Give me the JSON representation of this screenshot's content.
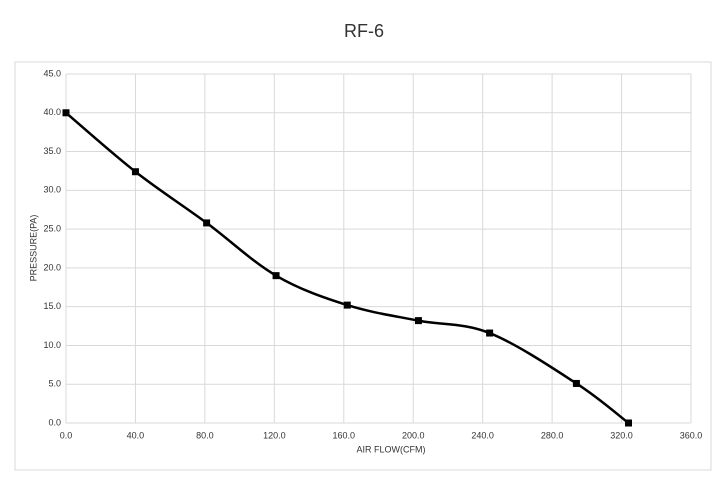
{
  "chart_data": {
    "type": "line",
    "title": "RF-6",
    "x_label": "AIR FLOW(CFM)",
    "y_label": "PRESSURE(PA)",
    "x": [
      0,
      40,
      81,
      121,
      162,
      203,
      244,
      294,
      324
    ],
    "series": [
      {
        "color": "#000000",
        "values": [
          40,
          32.4,
          25.8,
          19,
          15.2,
          13.2,
          11.6,
          5.1,
          0
        ]
      }
    ],
    "xlim": [
      0,
      360
    ],
    "xticks": [
      {
        "value": 0,
        "label": "0.0"
      },
      {
        "value": 40,
        "label": "40.0"
      },
      {
        "value": 80,
        "label": "80.0"
      },
      {
        "value": 120,
        "label": "120.0"
      },
      {
        "value": 160,
        "label": "160.0"
      },
      {
        "value": 200,
        "label": "200.0"
      },
      {
        "value": 240,
        "label": "240.0"
      },
      {
        "value": 280,
        "label": "280.0"
      },
      {
        "value": 320,
        "label": "320.0"
      },
      {
        "value": 360,
        "label": "360.0"
      }
    ],
    "ylim": [
      0,
      45
    ],
    "yticks": [
      {
        "value": 0,
        "label": "0.0"
      },
      {
        "value": 5,
        "label": "5.0"
      },
      {
        "value": 10,
        "label": "10.0"
      },
      {
        "value": 15,
        "label": "15.0"
      },
      {
        "value": 20,
        "label": "20.0"
      },
      {
        "value": 25,
        "label": "25.0"
      },
      {
        "value": 30,
        "label": "30.0"
      },
      {
        "value": 35,
        "label": "35.0"
      },
      {
        "value": 40,
        "label": "40.0"
      },
      {
        "value": 45,
        "label": "45.0"
      }
    ],
    "grid": true
  }
}
